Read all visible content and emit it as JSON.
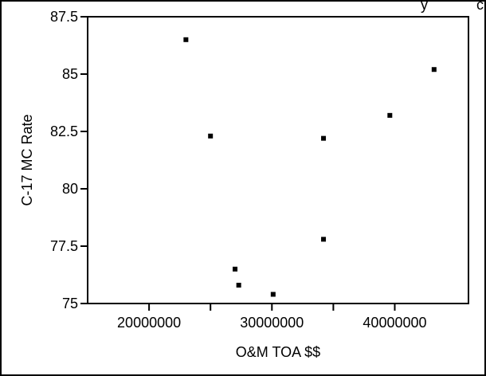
{
  "top_fragment_text": "y",
  "top_fragment_text_right": "c",
  "chart_data": {
    "type": "scatter",
    "title": "",
    "xlabel": "O&M TOA $$",
    "ylabel": "C-17 MC Rate",
    "xlim": [
      15000000,
      46000000
    ],
    "ylim": [
      75,
      87.5
    ],
    "xticks": [
      20000000,
      30000000,
      40000000
    ],
    "xtick_labels": [
      "20000000",
      "30000000",
      "40000000"
    ],
    "yticks": [
      75,
      77.5,
      80,
      82.5,
      85,
      87.5
    ],
    "ytick_labels": [
      "75",
      "77.5",
      "80",
      "82.5",
      "85",
      "87.5"
    ],
    "grid": false,
    "legend": "none",
    "marker_color": "#000000",
    "points": [
      {
        "x": 23000000,
        "y": 86.5
      },
      {
        "x": 25000000,
        "y": 82.3
      },
      {
        "x": 27000000,
        "y": 76.5
      },
      {
        "x": 27300000,
        "y": 75.8
      },
      {
        "x": 30100000,
        "y": 75.4
      },
      {
        "x": 34200000,
        "y": 82.2
      },
      {
        "x": 34200000,
        "y": 77.8
      },
      {
        "x": 39600000,
        "y": 83.2
      },
      {
        "x": 43200000,
        "y": 85.2
      }
    ]
  }
}
